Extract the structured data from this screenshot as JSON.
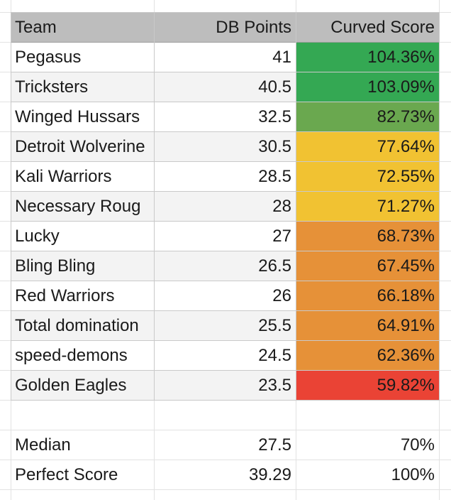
{
  "columns": {
    "team": "Team",
    "db_points": "DB Points",
    "curved_score": "Curved Score"
  },
  "rows": [
    {
      "team": "Pegasus",
      "db_points": "41",
      "curved_score": "104.36%",
      "color": "#34a853"
    },
    {
      "team": "Tricksters",
      "db_points": "40.5",
      "curved_score": "103.09%",
      "color": "#34a853"
    },
    {
      "team": "Winged Hussars",
      "db_points": "32.5",
      "curved_score": "82.73%",
      "color": "#6aa84f"
    },
    {
      "team": "Detroit Wolverine",
      "db_points": "30.5",
      "curved_score": "77.64%",
      "color": "#f1c232"
    },
    {
      "team": "Kali Warriors",
      "db_points": "28.5",
      "curved_score": "72.55%",
      "color": "#f1c232"
    },
    {
      "team": "Necessary Roug",
      "db_points": "28",
      "curved_score": "71.27%",
      "color": "#f1c232"
    },
    {
      "team": "Lucky",
      "db_points": "27",
      "curved_score": "68.73%",
      "color": "#e69138"
    },
    {
      "team": "Bling Bling",
      "db_points": "26.5",
      "curved_score": "67.45%",
      "color": "#e69138"
    },
    {
      "team": "Red Warriors",
      "db_points": "26",
      "curved_score": "66.18%",
      "color": "#e69138"
    },
    {
      "team": "Total domination",
      "db_points": "25.5",
      "curved_score": "64.91%",
      "color": "#e69138"
    },
    {
      "team": "speed-demons",
      "db_points": "24.5",
      "curved_score": "62.36%",
      "color": "#e69138"
    },
    {
      "team": "Golden Eagles",
      "db_points": "23.5",
      "curved_score": "59.82%",
      "color": "#ea4335"
    }
  ],
  "summary": [
    {
      "label": "Median",
      "db_points": "27.5",
      "curved_score": "70%"
    },
    {
      "label": "Perfect Score",
      "db_points": "39.29",
      "curved_score": "100%"
    }
  ]
}
